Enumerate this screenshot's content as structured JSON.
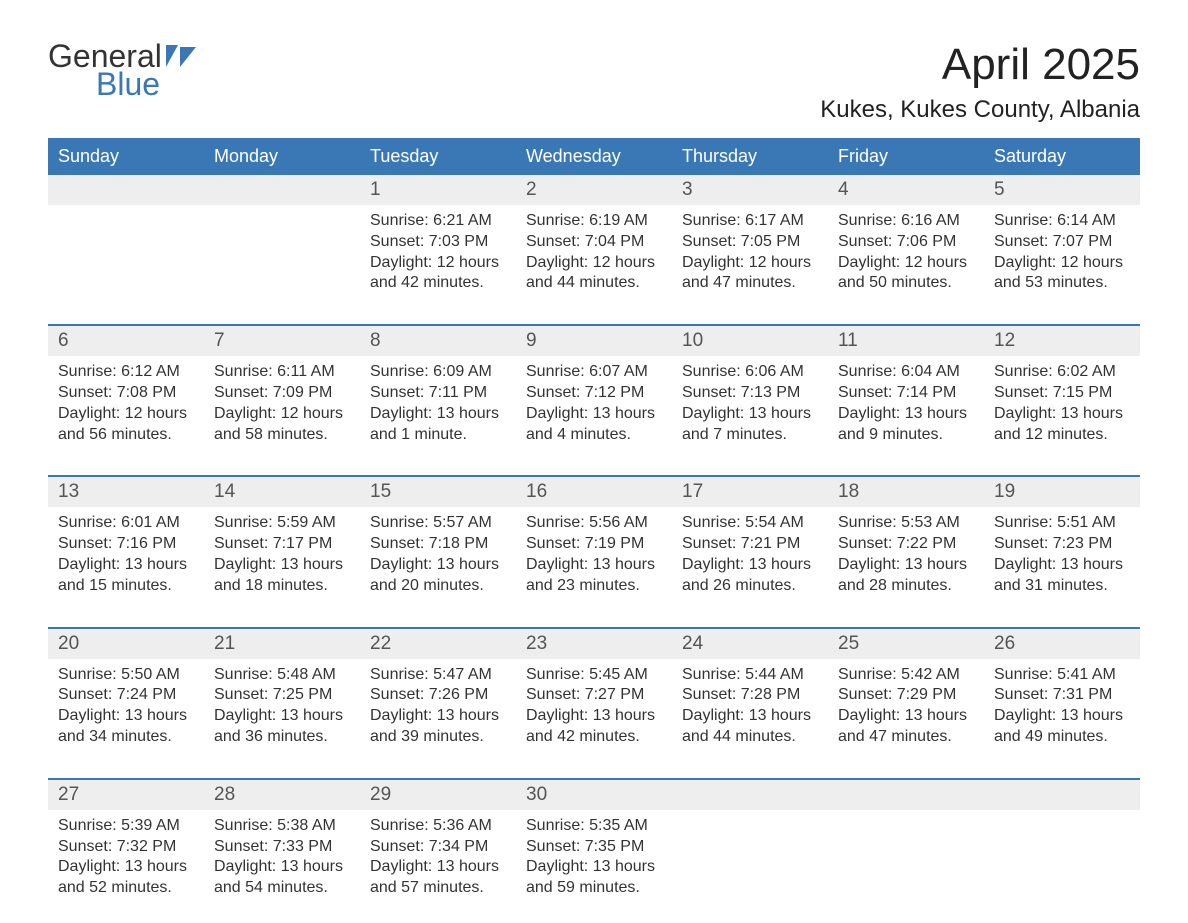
{
  "logo": {
    "line1": "General",
    "line2": "Blue",
    "flag_color": "#3a78b5"
  },
  "title": "April 2025",
  "location": "Kukes, Kukes County, Albania",
  "colors": {
    "header_bg": "#3a78b5",
    "header_text": "#ffffff",
    "daynum_bg": "#eeeeee",
    "body_bg": "#ffffff",
    "text": "#333333",
    "sep": "#3a78b5"
  },
  "day_headers": [
    "Sunday",
    "Monday",
    "Tuesday",
    "Wednesday",
    "Thursday",
    "Friday",
    "Saturday"
  ],
  "weeks": [
    [
      {
        "n": "",
        "sunrise": "",
        "sunset": "",
        "daylight": ""
      },
      {
        "n": "",
        "sunrise": "",
        "sunset": "",
        "daylight": ""
      },
      {
        "n": "1",
        "sunrise": "Sunrise: 6:21 AM",
        "sunset": "Sunset: 7:03 PM",
        "daylight": "Daylight: 12 hours and 42 minutes."
      },
      {
        "n": "2",
        "sunrise": "Sunrise: 6:19 AM",
        "sunset": "Sunset: 7:04 PM",
        "daylight": "Daylight: 12 hours and 44 minutes."
      },
      {
        "n": "3",
        "sunrise": "Sunrise: 6:17 AM",
        "sunset": "Sunset: 7:05 PM",
        "daylight": "Daylight: 12 hours and 47 minutes."
      },
      {
        "n": "4",
        "sunrise": "Sunrise: 6:16 AM",
        "sunset": "Sunset: 7:06 PM",
        "daylight": "Daylight: 12 hours and 50 minutes."
      },
      {
        "n": "5",
        "sunrise": "Sunrise: 6:14 AM",
        "sunset": "Sunset: 7:07 PM",
        "daylight": "Daylight: 12 hours and 53 minutes."
      }
    ],
    [
      {
        "n": "6",
        "sunrise": "Sunrise: 6:12 AM",
        "sunset": "Sunset: 7:08 PM",
        "daylight": "Daylight: 12 hours and 56 minutes."
      },
      {
        "n": "7",
        "sunrise": "Sunrise: 6:11 AM",
        "sunset": "Sunset: 7:09 PM",
        "daylight": "Daylight: 12 hours and 58 minutes."
      },
      {
        "n": "8",
        "sunrise": "Sunrise: 6:09 AM",
        "sunset": "Sunset: 7:11 PM",
        "daylight": "Daylight: 13 hours and 1 minute."
      },
      {
        "n": "9",
        "sunrise": "Sunrise: 6:07 AM",
        "sunset": "Sunset: 7:12 PM",
        "daylight": "Daylight: 13 hours and 4 minutes."
      },
      {
        "n": "10",
        "sunrise": "Sunrise: 6:06 AM",
        "sunset": "Sunset: 7:13 PM",
        "daylight": "Daylight: 13 hours and 7 minutes."
      },
      {
        "n": "11",
        "sunrise": "Sunrise: 6:04 AM",
        "sunset": "Sunset: 7:14 PM",
        "daylight": "Daylight: 13 hours and 9 minutes."
      },
      {
        "n": "12",
        "sunrise": "Sunrise: 6:02 AM",
        "sunset": "Sunset: 7:15 PM",
        "daylight": "Daylight: 13 hours and 12 minutes."
      }
    ],
    [
      {
        "n": "13",
        "sunrise": "Sunrise: 6:01 AM",
        "sunset": "Sunset: 7:16 PM",
        "daylight": "Daylight: 13 hours and 15 minutes."
      },
      {
        "n": "14",
        "sunrise": "Sunrise: 5:59 AM",
        "sunset": "Sunset: 7:17 PM",
        "daylight": "Daylight: 13 hours and 18 minutes."
      },
      {
        "n": "15",
        "sunrise": "Sunrise: 5:57 AM",
        "sunset": "Sunset: 7:18 PM",
        "daylight": "Daylight: 13 hours and 20 minutes."
      },
      {
        "n": "16",
        "sunrise": "Sunrise: 5:56 AM",
        "sunset": "Sunset: 7:19 PM",
        "daylight": "Daylight: 13 hours and 23 minutes."
      },
      {
        "n": "17",
        "sunrise": "Sunrise: 5:54 AM",
        "sunset": "Sunset: 7:21 PM",
        "daylight": "Daylight: 13 hours and 26 minutes."
      },
      {
        "n": "18",
        "sunrise": "Sunrise: 5:53 AM",
        "sunset": "Sunset: 7:22 PM",
        "daylight": "Daylight: 13 hours and 28 minutes."
      },
      {
        "n": "19",
        "sunrise": "Sunrise: 5:51 AM",
        "sunset": "Sunset: 7:23 PM",
        "daylight": "Daylight: 13 hours and 31 minutes."
      }
    ],
    [
      {
        "n": "20",
        "sunrise": "Sunrise: 5:50 AM",
        "sunset": "Sunset: 7:24 PM",
        "daylight": "Daylight: 13 hours and 34 minutes."
      },
      {
        "n": "21",
        "sunrise": "Sunrise: 5:48 AM",
        "sunset": "Sunset: 7:25 PM",
        "daylight": "Daylight: 13 hours and 36 minutes."
      },
      {
        "n": "22",
        "sunrise": "Sunrise: 5:47 AM",
        "sunset": "Sunset: 7:26 PM",
        "daylight": "Daylight: 13 hours and 39 minutes."
      },
      {
        "n": "23",
        "sunrise": "Sunrise: 5:45 AM",
        "sunset": "Sunset: 7:27 PM",
        "daylight": "Daylight: 13 hours and 42 minutes."
      },
      {
        "n": "24",
        "sunrise": "Sunrise: 5:44 AM",
        "sunset": "Sunset: 7:28 PM",
        "daylight": "Daylight: 13 hours and 44 minutes."
      },
      {
        "n": "25",
        "sunrise": "Sunrise: 5:42 AM",
        "sunset": "Sunset: 7:29 PM",
        "daylight": "Daylight: 13 hours and 47 minutes."
      },
      {
        "n": "26",
        "sunrise": "Sunrise: 5:41 AM",
        "sunset": "Sunset: 7:31 PM",
        "daylight": "Daylight: 13 hours and 49 minutes."
      }
    ],
    [
      {
        "n": "27",
        "sunrise": "Sunrise: 5:39 AM",
        "sunset": "Sunset: 7:32 PM",
        "daylight": "Daylight: 13 hours and 52 minutes."
      },
      {
        "n": "28",
        "sunrise": "Sunrise: 5:38 AM",
        "sunset": "Sunset: 7:33 PM",
        "daylight": "Daylight: 13 hours and 54 minutes."
      },
      {
        "n": "29",
        "sunrise": "Sunrise: 5:36 AM",
        "sunset": "Sunset: 7:34 PM",
        "daylight": "Daylight: 13 hours and 57 minutes."
      },
      {
        "n": "30",
        "sunrise": "Sunrise: 5:35 AM",
        "sunset": "Sunset: 7:35 PM",
        "daylight": "Daylight: 13 hours and 59 minutes."
      },
      {
        "n": "",
        "sunrise": "",
        "sunset": "",
        "daylight": ""
      },
      {
        "n": "",
        "sunrise": "",
        "sunset": "",
        "daylight": ""
      },
      {
        "n": "",
        "sunrise": "",
        "sunset": "",
        "daylight": ""
      }
    ]
  ]
}
